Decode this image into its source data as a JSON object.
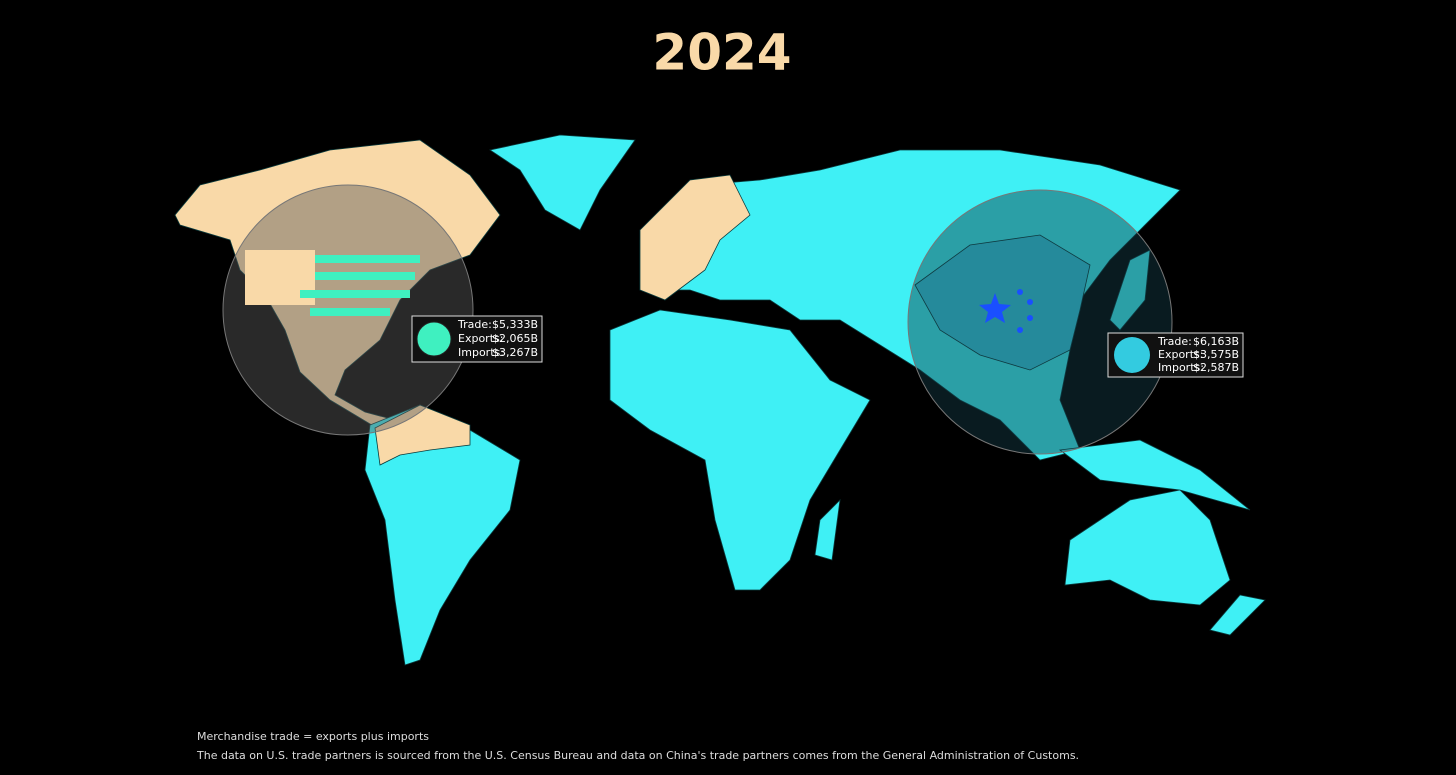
{
  "title": "2024",
  "callouts": [
    {
      "rows": [
        {
          "label": "Trade:",
          "value": "$5,333B"
        },
        {
          "label": "Exports:",
          "value": "$2,065B"
        },
        {
          "label": "Imports:",
          "value": "$3,267B"
        }
      ]
    },
    {
      "rows": [
        {
          "label": "Trade:",
          "value": "$6,163B"
        },
        {
          "label": "Exports:",
          "value": "$3,575B"
        },
        {
          "label": "Imports:",
          "value": "$2,587B"
        }
      ]
    }
  ],
  "footnotes": [
    "Merchandise trade = exports plus imports",
    "The data on U.S. trade partners is sourced from the U.S. Census Bureau and data on China's trade partners comes from the General Administration of Customs."
  ]
}
